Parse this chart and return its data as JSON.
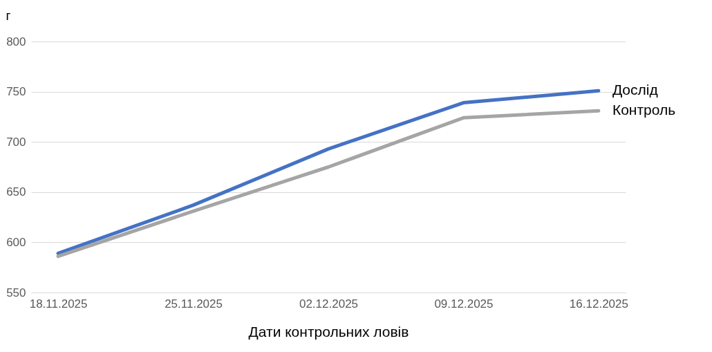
{
  "chart_data": {
    "type": "line",
    "ylabel": "г",
    "xlabel": "Дати контрольних ловів",
    "categories": [
      "18.11.2025",
      "25.11.2025",
      "02.12.2025",
      "09.12.2025",
      "16.12.2025"
    ],
    "series": [
      {
        "name": "Дослід",
        "color": "#4472c4",
        "values": [
          589,
          637,
          693,
          739,
          751
        ]
      },
      {
        "name": "Контроль",
        "color": "#a5a5a5",
        "values": [
          586,
          631,
          675,
          724,
          731
        ]
      }
    ],
    "ylim": [
      550,
      800
    ],
    "yticks": [
      550,
      600,
      650,
      700,
      750,
      800
    ],
    "grid": "y",
    "line_style": "solid"
  }
}
